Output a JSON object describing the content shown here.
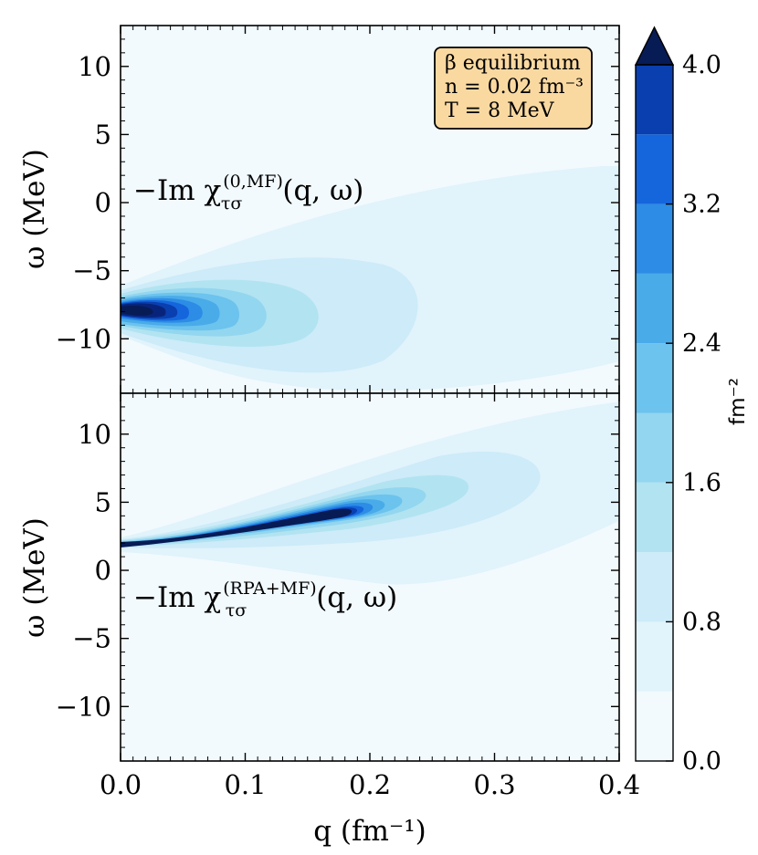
{
  "chart_data": {
    "type": "heatmap",
    "colorbar": {
      "unit_label": "fm⁻²",
      "vmin": 0.0,
      "vmax": 4.0,
      "levels": [
        0.0,
        0.4,
        0.8,
        1.2,
        1.6,
        2.0,
        2.4,
        2.8,
        3.2,
        3.6,
        4.0
      ],
      "tick_labels": [
        "0.0",
        "0.8",
        "1.6",
        "2.4",
        "3.2",
        "4.0"
      ],
      "extend": "max",
      "colors": [
        "#f2fafe",
        "#e1f3fb",
        "#cdebf8",
        "#b2e3f1",
        "#93d6ef",
        "#6cc3ed",
        "#4aabe9",
        "#2d8ce5",
        "#1566dc",
        "#0a3fb0",
        "#08247a",
        "#071b55"
      ]
    },
    "x_axis": {
      "label": "q (fm⁻¹)",
      "xlim": [
        0.0,
        0.4
      ],
      "tick_labels": [
        "0.0",
        "0.1",
        "0.2",
        "0.3",
        "0.4"
      ]
    },
    "panels": [
      {
        "name": "top",
        "curve_label": {
          "prefix": "−Im χ",
          "superscript": "(0,MF)",
          "subscript": "τσ",
          "suffix": "(q, ω)"
        },
        "ylabel": "ω (MeV)",
        "ylim": [
          -14,
          13
        ],
        "y_tick_labels": [
          "10",
          "5",
          "0",
          "−5",
          "−10"
        ],
        "peak": {
          "q": 0.0,
          "omega": -8.0,
          "value": 4.0
        },
        "note": "broad response centred near omega = -7 to -8 MeV, decreasing with q"
      },
      {
        "name": "bottom",
        "curve_label": {
          "prefix": "−Im χ",
          "superscript": "(RPA+MF)",
          "subscript": "τσ",
          "suffix": "(q, ω)"
        },
        "ylabel": "ω (MeV)",
        "ylim": [
          -14,
          13
        ],
        "y_tick_labels": [
          "10",
          "5",
          "0",
          "−5",
          "−10"
        ],
        "ridge": {
          "q_start": 0.0,
          "omega_start": 2.0,
          "q_end": 0.19,
          "omega_end": 4.2,
          "peak_value": 4.0
        },
        "note": "narrow collective ridge rising from omega = 2 MeV to about 4 MeV near q = 0.18"
      }
    ],
    "inset": {
      "line1": "β equilibrium",
      "line2": "n = 0.02 fm⁻³",
      "line3": "T = 8 MeV"
    }
  }
}
